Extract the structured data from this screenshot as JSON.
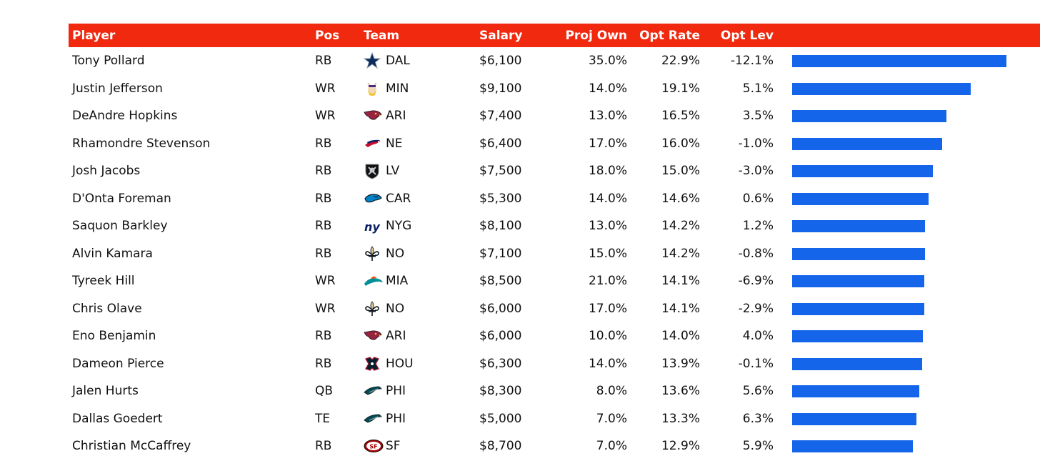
{
  "chart_data": {
    "type": "table",
    "columns": [
      "Player",
      "Pos",
      "Team",
      "Salary",
      "Proj Own",
      "Opt Rate",
      "Opt Lev"
    ],
    "bar_metric": "Opt Rate",
    "bar_max": 22.9,
    "bar_color": "#1565ea",
    "header_color": "#f0290f",
    "rows": [
      {
        "player": "Tony Pollard",
        "pos": "RB",
        "team": "DAL",
        "logo": "cowboys-star-icon",
        "salary": "$6,100",
        "proj_own": "35.0%",
        "opt_rate": "22.9%",
        "opt_lev": "-12.1%",
        "opt_rate_value": 22.9
      },
      {
        "player": "Justin Jefferson",
        "pos": "WR",
        "team": "MIN",
        "logo": "vikings-icon",
        "salary": "$9,100",
        "proj_own": "14.0%",
        "opt_rate": "19.1%",
        "opt_lev": "5.1%",
        "opt_rate_value": 19.1
      },
      {
        "player": "DeAndre Hopkins",
        "pos": "WR",
        "team": "ARI",
        "logo": "cardinals-icon",
        "salary": "$7,400",
        "proj_own": "13.0%",
        "opt_rate": "16.5%",
        "opt_lev": "3.5%",
        "opt_rate_value": 16.5
      },
      {
        "player": "Rhamondre Stevenson",
        "pos": "RB",
        "team": "NE",
        "logo": "patriots-icon",
        "salary": "$6,400",
        "proj_own": "17.0%",
        "opt_rate": "16.0%",
        "opt_lev": "-1.0%",
        "opt_rate_value": 16.0
      },
      {
        "player": "Josh Jacobs",
        "pos": "RB",
        "team": "LV",
        "logo": "raiders-shield-icon",
        "salary": "$7,500",
        "proj_own": "18.0%",
        "opt_rate": "15.0%",
        "opt_lev": "-3.0%",
        "opt_rate_value": 15.0
      },
      {
        "player": "D'Onta Foreman",
        "pos": "RB",
        "team": "CAR",
        "logo": "panthers-icon",
        "salary": "$5,300",
        "proj_own": "14.0%",
        "opt_rate": "14.6%",
        "opt_lev": "0.6%",
        "opt_rate_value": 14.6
      },
      {
        "player": "Saquon Barkley",
        "pos": "RB",
        "team": "NYG",
        "logo": "giants-ny-icon",
        "salary": "$8,100",
        "proj_own": "13.0%",
        "opt_rate": "14.2%",
        "opt_lev": "1.2%",
        "opt_rate_value": 14.2
      },
      {
        "player": "Alvin Kamara",
        "pos": "RB",
        "team": "NO",
        "logo": "fleur-de-lis-icon",
        "salary": "$7,100",
        "proj_own": "15.0%",
        "opt_rate": "14.2%",
        "opt_lev": "-0.8%",
        "opt_rate_value": 14.2
      },
      {
        "player": "Tyreek Hill",
        "pos": "WR",
        "team": "MIA",
        "logo": "dolphins-icon",
        "salary": "$8,500",
        "proj_own": "21.0%",
        "opt_rate": "14.1%",
        "opt_lev": "-6.9%",
        "opt_rate_value": 14.1
      },
      {
        "player": "Chris Olave",
        "pos": "WR",
        "team": "NO",
        "logo": "fleur-de-lis-icon",
        "salary": "$6,000",
        "proj_own": "17.0%",
        "opt_rate": "14.1%",
        "opt_lev": "-2.9%",
        "opt_rate_value": 14.1
      },
      {
        "player": "Eno Benjamin",
        "pos": "RB",
        "team": "ARI",
        "logo": "cardinals-icon",
        "salary": "$6,000",
        "proj_own": "10.0%",
        "opt_rate": "14.0%",
        "opt_lev": "4.0%",
        "opt_rate_value": 14.0
      },
      {
        "player": "Dameon Pierce",
        "pos": "RB",
        "team": "HOU",
        "logo": "texans-icon",
        "salary": "$6,300",
        "proj_own": "14.0%",
        "opt_rate": "13.9%",
        "opt_lev": "-0.1%",
        "opt_rate_value": 13.9
      },
      {
        "player": "Jalen Hurts",
        "pos": "QB",
        "team": "PHI",
        "logo": "eagles-icon",
        "salary": "$8,300",
        "proj_own": "8.0%",
        "opt_rate": "13.6%",
        "opt_lev": "5.6%",
        "opt_rate_value": 13.6
      },
      {
        "player": "Dallas Goedert",
        "pos": "TE",
        "team": "PHI",
        "logo": "eagles-icon",
        "salary": "$5,000",
        "proj_own": "7.0%",
        "opt_rate": "13.3%",
        "opt_lev": "6.3%",
        "opt_rate_value": 13.3
      },
      {
        "player": "Christian McCaffrey",
        "pos": "RB",
        "team": "SF",
        "logo": "49ers-oval-icon",
        "salary": "$8,700",
        "proj_own": "7.0%",
        "opt_rate": "12.9%",
        "opt_lev": "5.9%",
        "opt_rate_value": 12.9
      }
    ]
  }
}
